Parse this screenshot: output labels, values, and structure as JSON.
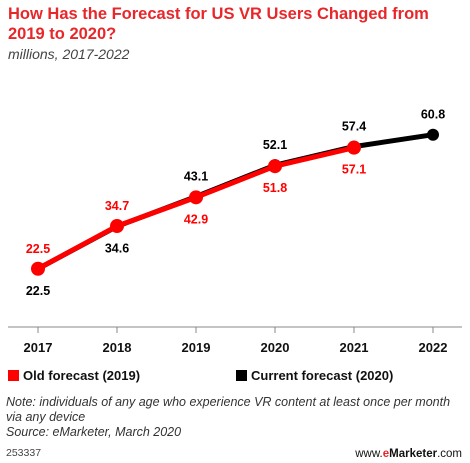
{
  "header": {
    "title": "How Has the Forecast for US VR Users Changed from 2019 to 2020?",
    "subtitle": "millions, 2017-2022"
  },
  "colors": {
    "old": "#ff0000",
    "current": "#000000",
    "title": "#e8272a",
    "axis": "#888888"
  },
  "chart_data": {
    "type": "line",
    "title": "How Has the Forecast for US VR Users Changed from 2019 to 2020?",
    "subtitle": "millions, 2017-2022",
    "categories": [
      "2017",
      "2018",
      "2019",
      "2020",
      "2021",
      "2022"
    ],
    "series": [
      {
        "name": "Old forecast (2019)",
        "color": "#ff0000",
        "values": [
          22.5,
          34.7,
          42.9,
          51.8,
          57.1,
          null
        ]
      },
      {
        "name": "Current forecast (2020)",
        "color": "#000000",
        "values": [
          22.5,
          34.6,
          43.1,
          52.1,
          57.4,
          60.8
        ]
      }
    ],
    "ylim": [
      15,
      65
    ],
    "grid": false,
    "legend_position": "bottom"
  },
  "legend": {
    "old_label": "Old forecast (2019)",
    "current_label": "Current forecast (2020)"
  },
  "footer": {
    "note": "Note: individuals of any age who experience VR content at least once per month via any device",
    "source": "Source: eMarketer, March 2020",
    "id": "253337",
    "brand_prefix": "www.",
    "brand_e": "e",
    "brand_name": "Marketer",
    "brand_suffix": ".com"
  }
}
